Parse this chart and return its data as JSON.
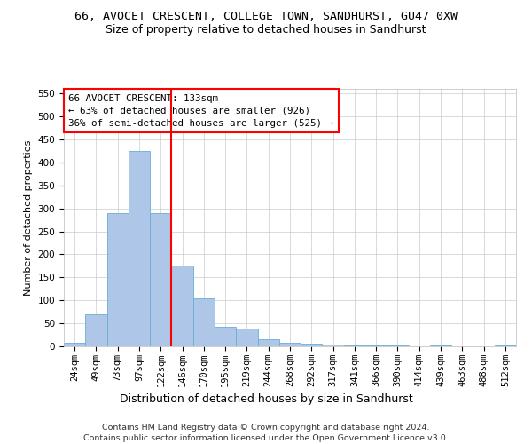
{
  "title1": "66, AVOCET CRESCENT, COLLEGE TOWN, SANDHURST, GU47 0XW",
  "title2": "Size of property relative to detached houses in Sandhurst",
  "xlabel": "Distribution of detached houses by size in Sandhurst",
  "ylabel": "Number of detached properties",
  "categories": [
    "24sqm",
    "49sqm",
    "73sqm",
    "97sqm",
    "122sqm",
    "146sqm",
    "170sqm",
    "195sqm",
    "219sqm",
    "244sqm",
    "268sqm",
    "292sqm",
    "317sqm",
    "341sqm",
    "366sqm",
    "390sqm",
    "414sqm",
    "439sqm",
    "463sqm",
    "488sqm",
    "512sqm"
  ],
  "values": [
    8,
    70,
    290,
    425,
    290,
    175,
    105,
    43,
    38,
    15,
    8,
    5,
    3,
    1,
    1,
    2,
    0,
    1,
    0,
    0,
    2
  ],
  "bar_color": "#aec6e8",
  "bar_edge_color": "#6aaed6",
  "vline_color": "red",
  "vline_x": 4.5,
  "annotation_title": "66 AVOCET CRESCENT: 133sqm",
  "annotation_line1": "← 63% of detached houses are smaller (926)",
  "annotation_line2": "36% of semi-detached houses are larger (525) →",
  "annotation_box_color": "white",
  "annotation_box_edge": "red",
  "ylim": [
    0,
    560
  ],
  "yticks": [
    0,
    50,
    100,
    150,
    200,
    250,
    300,
    350,
    400,
    450,
    500,
    550
  ],
  "footer1": "Contains HM Land Registry data © Crown copyright and database right 2024.",
  "footer2": "Contains public sector information licensed under the Open Government Licence v3.0.",
  "title1_fontsize": 9.5,
  "title2_fontsize": 9,
  "xlabel_fontsize": 9,
  "ylabel_fontsize": 8,
  "tick_fontsize": 7.5,
  "footer_fontsize": 6.8,
  "annotation_fontsize": 7.8
}
